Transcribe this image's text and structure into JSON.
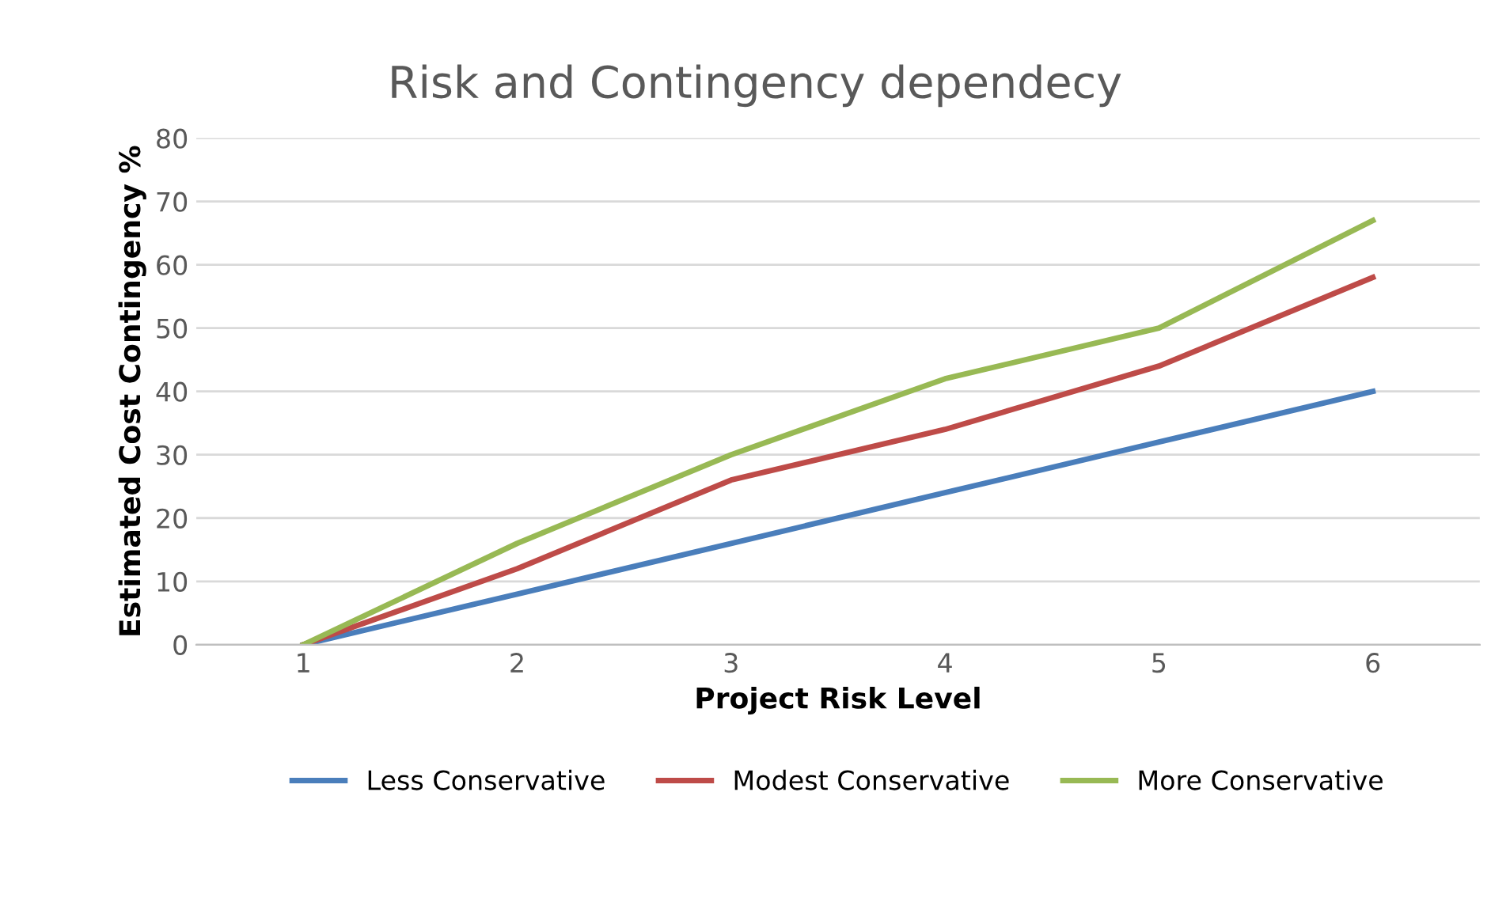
{
  "chart_data": {
    "type": "line",
    "title": "Risk and Contingency dependecy",
    "xlabel": "Project Risk Level",
    "ylabel": "Estimated Cost Contingency %",
    "categories": [
      "1",
      "2",
      "3",
      "4",
      "5",
      "6"
    ],
    "series": [
      {
        "name": "Less Conservative",
        "color": "#4a7ebb",
        "values": [
          0,
          8,
          16,
          24,
          32,
          40
        ]
      },
      {
        "name": "Modest Conservative",
        "color": "#be4b48",
        "values": [
          0,
          12,
          26,
          34,
          44,
          58
        ]
      },
      {
        "name": "More Conservative",
        "color": "#98b954",
        "values": [
          0,
          16,
          30,
          42,
          50,
          67
        ]
      }
    ],
    "ylim": [
      0,
      80
    ],
    "yticks": [
      0,
      10,
      20,
      30,
      40,
      50,
      60,
      70,
      80
    ],
    "grid": "y",
    "legend": "bottom"
  }
}
